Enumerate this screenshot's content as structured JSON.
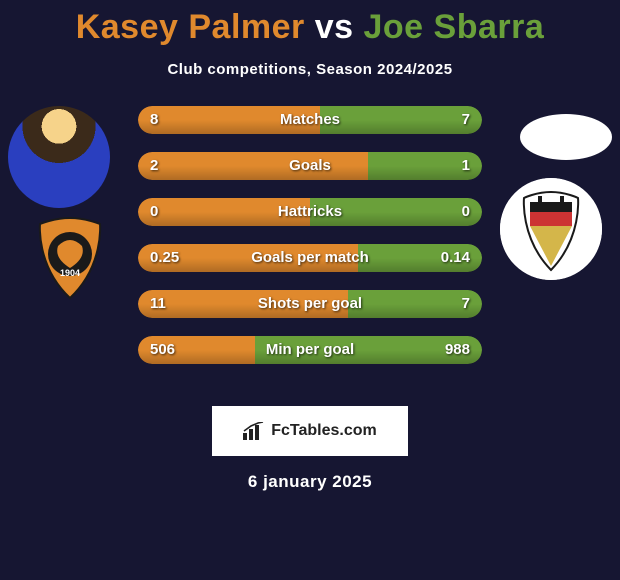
{
  "title": {
    "player1": "Kasey Palmer",
    "vs": "vs",
    "player2": "Joe Sbarra",
    "player1_color": "#e0892d",
    "player2_color": "#6aa03a"
  },
  "subtitle": "Club competitions, Season 2024/2025",
  "bar_colors": {
    "left": "#e0892d",
    "right": "#6aa03a"
  },
  "background_color": "#161632",
  "stats": [
    {
      "label": "Matches",
      "left_val": "8",
      "right_val": "7",
      "left_pct": 53,
      "right_pct": 47
    },
    {
      "label": "Goals",
      "left_val": "2",
      "right_val": "1",
      "left_pct": 67,
      "right_pct": 33
    },
    {
      "label": "Hattricks",
      "left_val": "0",
      "right_val": "0",
      "left_pct": 50,
      "right_pct": 50
    },
    {
      "label": "Goals per match",
      "left_val": "0.25",
      "right_val": "0.14",
      "left_pct": 64,
      "right_pct": 36
    },
    {
      "label": "Shots per goal",
      "left_val": "11",
      "right_val": "7",
      "left_pct": 61,
      "right_pct": 39
    },
    {
      "label": "Min per goal",
      "left_val": "506",
      "right_val": "988",
      "left_pct": 34,
      "right_pct": 66
    }
  ],
  "club1": {
    "badge_bg": "#e0892d",
    "inner_bg": "#1a1a1a",
    "year": "1904"
  },
  "club2": {
    "badge_bg": "#ffffff",
    "stripe1": "#d4b64a",
    "stripe2": "#c33",
    "stripe3": "#1a1a1a"
  },
  "watermark": "FcTables.com",
  "date": "6 january 2025"
}
